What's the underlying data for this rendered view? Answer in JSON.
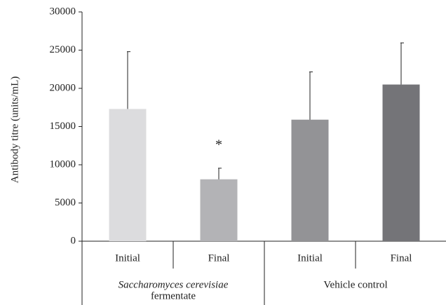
{
  "chart_data": {
    "type": "bar",
    "y_label": "Antibody titre (units/mL)",
    "categories": [
      "Initial",
      "Final",
      "Initial",
      "Final"
    ],
    "groups": [
      {
        "lines": [
          "Saccharomyces cerevisiae",
          "fermentate"
        ],
        "span": [
          0,
          1
        ]
      },
      {
        "lines": [
          "Vehicle control"
        ],
        "span": [
          2,
          3
        ]
      }
    ],
    "values": [
      17300,
      8100,
      15900,
      20500
    ],
    "errors": [
      7500,
      1450,
      6250,
      5450
    ],
    "colors": [
      "#dcdcde",
      "#b3b3b6",
      "#939396",
      "#747478"
    ],
    "annotations": [
      {
        "index": 1,
        "text": "*"
      }
    ],
    "ylim": [
      0,
      30000
    ],
    "yticks": [
      0,
      5000,
      10000,
      15000,
      20000,
      25000,
      30000
    ]
  }
}
